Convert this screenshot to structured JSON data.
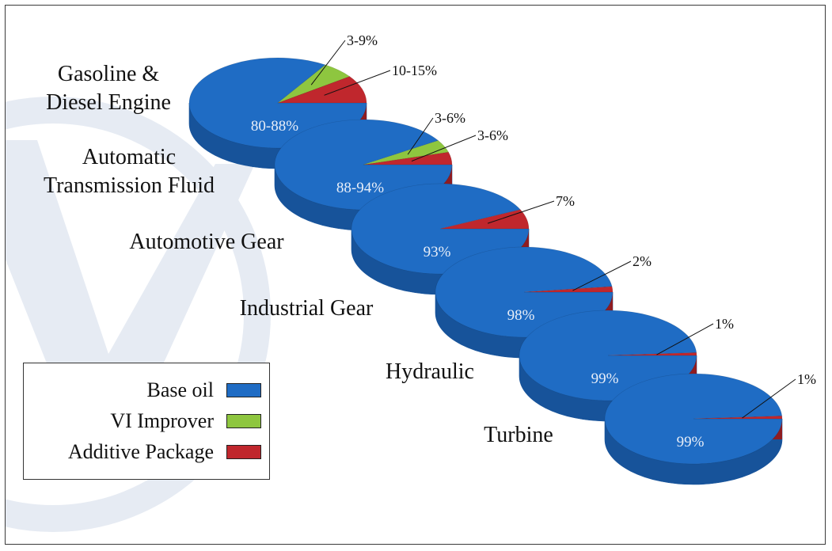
{
  "colors": {
    "base_oil": "#1f6cc4",
    "base_oil_dark": "#17539a",
    "vi_improver": "#8ec63f",
    "vi_improver_dark": "#6e9c2e",
    "additive": "#c0272d",
    "additive_dark": "#8f1c21",
    "watermark": "#e6ebf3"
  },
  "legend": {
    "items": [
      {
        "label": "Base oil",
        "color": "#1f6cc4"
      },
      {
        "label": "VI Improver",
        "color": "#8ec63f"
      },
      {
        "label": "Additive Package",
        "color": "#c0272d"
      }
    ]
  },
  "chart_data": {
    "type": "pie",
    "title": "",
    "legend_position": "bottom-left",
    "series_names": [
      "Base oil",
      "VI Improver",
      "Additive Package"
    ],
    "pies": [
      {
        "name_lines": [
          "Gasoline &",
          "Diesel Engine"
        ],
        "base_oil_label": "80-88%",
        "slices": [
          {
            "series": "Base oil",
            "value": 84,
            "label": "80-88%"
          },
          {
            "series": "VI Improver",
            "value": 6,
            "label": "3-9%"
          },
          {
            "series": "Additive Package",
            "value": 10,
            "label": "10-15%"
          }
        ]
      },
      {
        "name_lines": [
          "Automatic",
          "Transmission Fluid"
        ],
        "base_oil_label": "88-94%",
        "slices": [
          {
            "series": "Base oil",
            "value": 91,
            "label": "88-94%"
          },
          {
            "series": "VI Improver",
            "value": 4.5,
            "label": "3-6%"
          },
          {
            "series": "Additive Package",
            "value": 4.5,
            "label": "3-6%"
          }
        ]
      },
      {
        "name_lines": [
          "Automotive Gear"
        ],
        "base_oil_label": "93%",
        "slices": [
          {
            "series": "Base oil",
            "value": 93,
            "label": "93%"
          },
          {
            "series": "Additive Package",
            "value": 7,
            "label": "7%"
          }
        ]
      },
      {
        "name_lines": [
          "Industrial Gear"
        ],
        "base_oil_label": "98%",
        "slices": [
          {
            "series": "Base oil",
            "value": 98,
            "label": "98%"
          },
          {
            "series": "Additive Package",
            "value": 2,
            "label": "2%"
          }
        ]
      },
      {
        "name_lines": [
          "Hydraulic"
        ],
        "base_oil_label": "99%",
        "slices": [
          {
            "series": "Base oil",
            "value": 99,
            "label": "99%"
          },
          {
            "series": "Additive Package",
            "value": 1,
            "label": "1%"
          }
        ]
      },
      {
        "name_lines": [
          "Turbine"
        ],
        "base_oil_label": "99%",
        "slices": [
          {
            "series": "Base oil",
            "value": 99,
            "label": "99%"
          },
          {
            "series": "Additive Package",
            "value": 1,
            "label": "1%"
          }
        ]
      }
    ]
  }
}
